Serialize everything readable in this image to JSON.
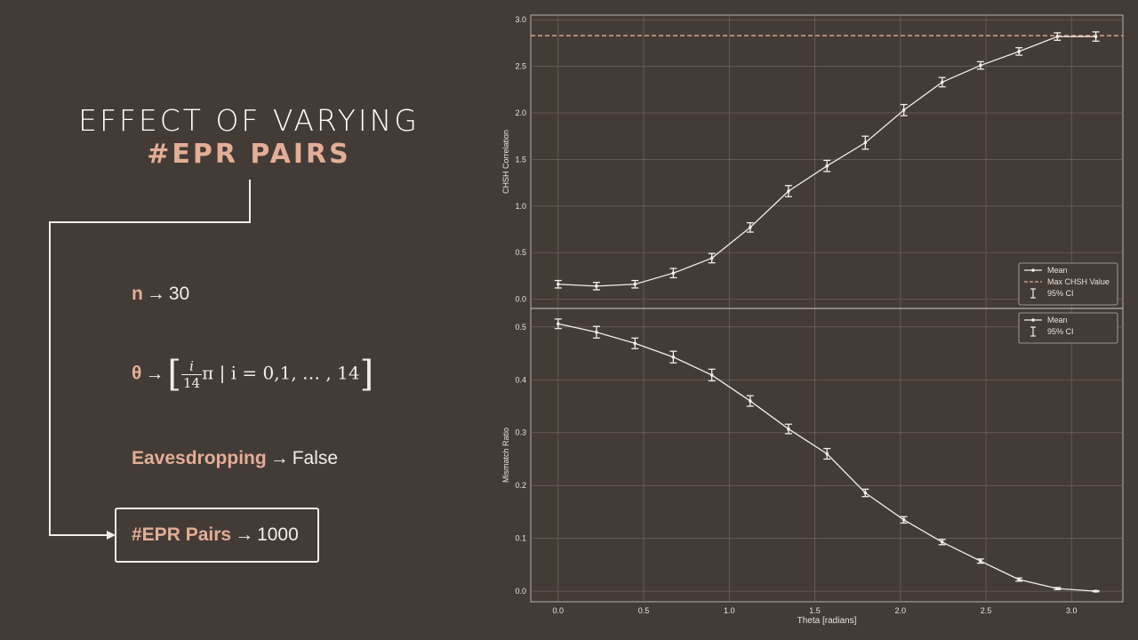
{
  "slide": {
    "title_line1": "EFFECT OF VARYING",
    "title_line2": "#EPR PAIRS"
  },
  "params": {
    "n_key": "n",
    "n_value": "30",
    "theta_key": "θ",
    "theta_frac_num": "i",
    "theta_frac_den": "14",
    "theta_rest": "π | i = 0,1, … , 14",
    "eaves_key": "Eavesdropping",
    "eaves_value": "False",
    "epr_key": "#EPR Pairs",
    "epr_value": "1000",
    "arrow": "→"
  },
  "chart_data": [
    {
      "type": "line",
      "xlabel": "",
      "ylabel": "CHSH Correlation",
      "xlim": [
        -0.16,
        3.3
      ],
      "ylim": [
        -0.1,
        3.05
      ],
      "yticks": [
        0.0,
        0.5,
        1.0,
        1.5,
        2.0,
        2.5,
        3.0
      ],
      "grid": true,
      "x": [
        0.0,
        0.224,
        0.449,
        0.673,
        0.898,
        1.122,
        1.346,
        1.571,
        1.795,
        2.02,
        2.244,
        2.468,
        2.693,
        2.917,
        3.142
      ],
      "series": [
        {
          "name": "Mean",
          "values": [
            0.16,
            0.14,
            0.16,
            0.28,
            0.44,
            0.77,
            1.16,
            1.43,
            1.68,
            2.03,
            2.33,
            2.51,
            2.66,
            2.82,
            2.82
          ],
          "ci": [
            0.04,
            0.04,
            0.04,
            0.05,
            0.05,
            0.05,
            0.06,
            0.06,
            0.07,
            0.06,
            0.05,
            0.04,
            0.04,
            0.04,
            0.05
          ]
        }
      ],
      "hline": {
        "name": "Max CHSH Value",
        "value": 2.83
      },
      "legend": {
        "position": "lower-right",
        "entries": [
          "Mean",
          "Max CHSH Value",
          "95% CI"
        ]
      }
    },
    {
      "type": "line",
      "xlabel": "Theta [radians]",
      "ylabel": "Mismatch Ratio",
      "xlim": [
        -0.16,
        3.3
      ],
      "ylim": [
        -0.02,
        0.535
      ],
      "yticks": [
        0.0,
        0.1,
        0.2,
        0.3,
        0.4,
        0.5
      ],
      "xticks": [
        0.0,
        0.5,
        1.0,
        1.5,
        2.0,
        2.5,
        3.0
      ],
      "grid": true,
      "x": [
        0.0,
        0.224,
        0.449,
        0.673,
        0.898,
        1.122,
        1.346,
        1.571,
        1.795,
        2.02,
        2.244,
        2.468,
        2.693,
        2.917,
        3.142
      ],
      "series": [
        {
          "name": "Mean",
          "values": [
            0.506,
            0.49,
            0.469,
            0.443,
            0.409,
            0.36,
            0.307,
            0.26,
            0.186,
            0.135,
            0.093,
            0.057,
            0.022,
            0.005,
            0.0
          ],
          "ci": [
            0.009,
            0.011,
            0.01,
            0.011,
            0.011,
            0.01,
            0.009,
            0.01,
            0.007,
            0.006,
            0.005,
            0.004,
            0.003,
            0.002,
            0.001
          ]
        }
      ],
      "legend": {
        "position": "upper-right",
        "entries": [
          "Mean",
          "95% CI"
        ]
      }
    }
  ],
  "colors": {
    "background": "#433b36",
    "accent": "#e4ad96",
    "text": "#f2eeea",
    "line": "#f2eeea",
    "grid": "#6b625c",
    "maxline": "#e4ad96"
  }
}
